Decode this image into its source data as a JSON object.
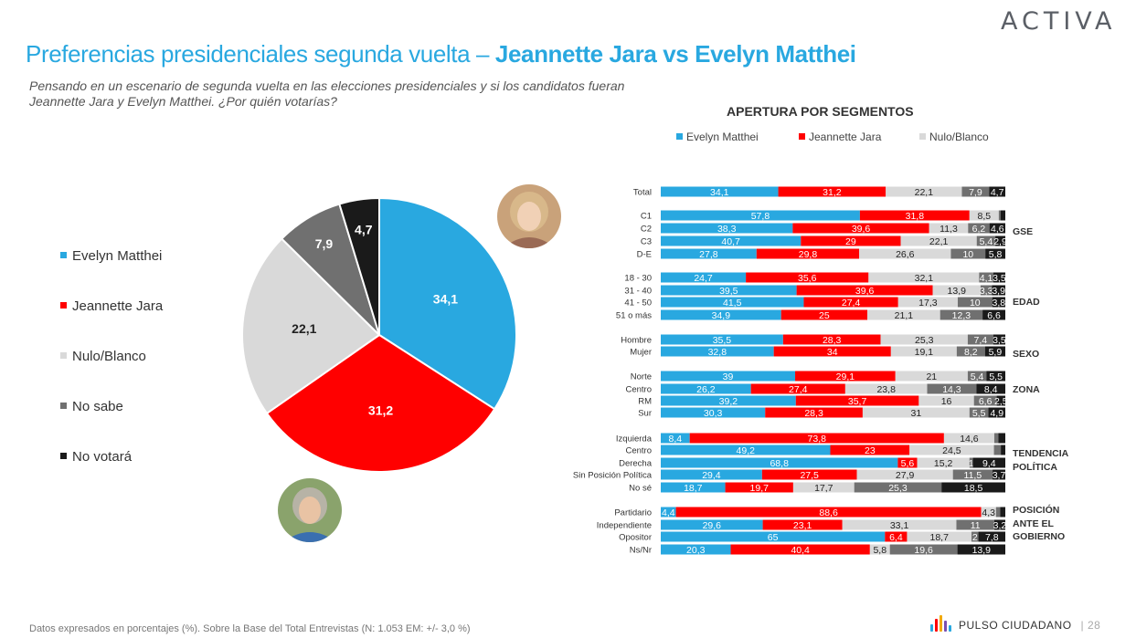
{
  "brand": {
    "logo_text": "ACTIVA",
    "footer_brand": "PULSO CIUDADANO",
    "page_number": "28"
  },
  "header": {
    "title_part1": "Preferencias presidenciales segunda vuelta – ",
    "title_part2": "Jeannette Jara vs Evelyn Matthei",
    "subtitle": "Pensando en un escenario de segunda vuelta en las elecciones presidenciales y si los candidatos fueran Jeannette Jara y Evelyn Matthei. ¿Por quién votarías?"
  },
  "footer_note": "Datos expresados en porcentajes (%). Sobre la Base del Total Entrevistas (N: 1.053  EM: +/- 3,0 %)",
  "colors": {
    "matthei": "#29a8e0",
    "jara": "#ff0000",
    "nulo": "#d9d9d9",
    "nosabe": "#707070",
    "novotara": "#1a1a1a"
  },
  "chart_data": [
    {
      "type": "pie",
      "categories": [
        "Evelyn Matthei",
        "Jeannette Jara",
        "Nulo/Blanco",
        "No sabe",
        "No votará"
      ],
      "values": [
        34.1,
        31.2,
        22.1,
        7.9,
        4.7
      ],
      "labels": [
        "34,1",
        "31,2",
        "22,1",
        "7,9",
        "4,7"
      ],
      "colors": [
        "#29a8e0",
        "#ff0000",
        "#d9d9d9",
        "#707070",
        "#1a1a1a"
      ],
      "legend_position": "left"
    },
    {
      "type": "bar",
      "orientation": "horizontal",
      "stacked": true,
      "title": "APERTURA POR SEGMENTOS",
      "legend": [
        "Evelyn Matthei",
        "Jeannette Jara",
        "Nulo/Blanco"
      ],
      "legend_position": "top",
      "series_colors": [
        "#29a8e0",
        "#ff0000",
        "#d9d9d9",
        "#707070",
        "#1a1a1a"
      ],
      "groups": [
        {
          "label": "",
          "rows": [
            {
              "label": "Total",
              "values": [
                34.1,
                31.2,
                22.1,
                7.9,
                4.7
              ],
              "labels": [
                "34,1",
                "31,2",
                "22,1",
                "7,9",
                "4,7"
              ]
            }
          ]
        },
        {
          "label": "GSE",
          "rows": [
            {
              "label": "C1",
              "values": [
                57.8,
                31.8,
                8.5,
                0.5,
                1.4
              ],
              "labels": [
                "57,8",
                "31,8",
                "8,5",
                "",
                ""
              ]
            },
            {
              "label": "C2",
              "values": [
                38.3,
                39.6,
                11.3,
                6.2,
                4.6
              ],
              "labels": [
                "38,3",
                "39,6",
                "11,3",
                "6,2",
                "4,6"
              ]
            },
            {
              "label": "C3",
              "values": [
                40.7,
                29,
                22.1,
                5.4,
                2.9
              ],
              "labels": [
                "40,7",
                "29",
                "22,1",
                "5,4",
                "2,9"
              ]
            },
            {
              "label": "D-E",
              "values": [
                27.8,
                29.8,
                26.6,
                10,
                5.8
              ],
              "labels": [
                "27,8",
                "29,8",
                "26,6",
                "10",
                "5,8"
              ]
            }
          ]
        },
        {
          "label": "EDAD",
          "rows": [
            {
              "label": "18 - 30",
              "values": [
                24.7,
                35.6,
                32.1,
                4.1,
                3.5
              ],
              "labels": [
                "24,7",
                "35,6",
                "32,1",
                "4,1",
                "3,5"
              ]
            },
            {
              "label": "31 - 40",
              "values": [
                39.5,
                39.6,
                13.9,
                3.3,
                3.9
              ],
              "labels": [
                "39,5",
                "39,6",
                "13,9",
                "3,3",
                "3,9"
              ]
            },
            {
              "label": "41 - 50",
              "values": [
                41.5,
                27.4,
                17.3,
                10,
                3.8
              ],
              "labels": [
                "41,5",
                "27,4",
                "17,3",
                "10",
                "3,8"
              ]
            },
            {
              "label": "51 o más",
              "values": [
                34.9,
                25,
                21.1,
                12.3,
                6.6
              ],
              "labels": [
                "34,9",
                "25",
                "21,1",
                "12,3",
                "6,6"
              ]
            }
          ]
        },
        {
          "label": "SEXO",
          "rows": [
            {
              "label": "Hombre",
              "values": [
                35.5,
                28.3,
                25.3,
                7.4,
                3.5
              ],
              "labels": [
                "35,5",
                "28,3",
                "25,3",
                "7,4",
                "3,5"
              ]
            },
            {
              "label": "Mujer",
              "values": [
                32.8,
                34,
                19.1,
                8.2,
                5.9
              ],
              "labels": [
                "32,8",
                "34",
                "19,1",
                "8,2",
                "5,9"
              ]
            }
          ]
        },
        {
          "label": "ZONA",
          "rows": [
            {
              "label": "Norte",
              "values": [
                39,
                29.1,
                21,
                5.4,
                5.5
              ],
              "labels": [
                "39",
                "29,1",
                "21",
                "5,4",
                "5,5"
              ]
            },
            {
              "label": "Centro",
              "values": [
                26.2,
                27.4,
                23.8,
                14.3,
                8.4
              ],
              "labels": [
                "26,2",
                "27,4",
                "23,8",
                "14,3",
                "8,4"
              ]
            },
            {
              "label": "RM",
              "values": [
                39.2,
                35.7,
                16,
                6.6,
                2.5
              ],
              "labels": [
                "39,2",
                "35,7",
                "16",
                "6,6",
                "2,5"
              ]
            },
            {
              "label": "Sur",
              "values": [
                30.3,
                28.3,
                31,
                5.5,
                4.9
              ],
              "labels": [
                "30,3",
                "28,3",
                "31",
                "5,5",
                "4,9"
              ]
            }
          ]
        },
        {
          "label": "TENDENCIA POLÍTICA",
          "rows": [
            {
              "label": "Izquierda",
              "values": [
                8.4,
                73.8,
                14.6,
                1.2,
                2
              ],
              "labels": [
                "8,4",
                "73,8",
                "14,6",
                "",
                ""
              ]
            },
            {
              "label": "Centro",
              "values": [
                49.2,
                23,
                24.5,
                2,
                1.3
              ],
              "labels": [
                "49,2",
                "23",
                "24,5",
                "",
                ""
              ]
            },
            {
              "label": "Derecha",
              "values": [
                68.8,
                5.6,
                15.2,
                1,
                9.4
              ],
              "labels": [
                "68,8",
                "5,6",
                "15,2",
                "1",
                "9,4"
              ]
            },
            {
              "label": "Sin Posición Política",
              "values": [
                29.4,
                27.5,
                27.9,
                11.5,
                3.7
              ],
              "labels": [
                "29,4",
                "27,5",
                "27,9",
                "11,5",
                "3,7"
              ]
            },
            {
              "label": "No sé",
              "values": [
                18.7,
                19.7,
                17.7,
                25.3,
                18.5
              ],
              "labels": [
                "18,7",
                "19,7",
                "17,7",
                "25,3",
                "18,5"
              ]
            }
          ]
        },
        {
          "label": "POSICIÓN ANTE EL GOBIERNO",
          "rows": [
            {
              "label": "Partidario",
              "values": [
                4.4,
                88.6,
                4.3,
                1.2,
                1.5
              ],
              "labels": [
                "4,4",
                "88,6",
                "4,3",
                "",
                ""
              ]
            },
            {
              "label": "Independiente",
              "values": [
                29.6,
                23.1,
                33.1,
                11,
                3.2
              ],
              "labels": [
                "29,6",
                "23,1",
                "33,1",
                "11",
                "3,2"
              ]
            },
            {
              "label": "Opositor",
              "values": [
                65,
                6.4,
                18.7,
                2,
                7.8
              ],
              "labels": [
                "65",
                "6,4",
                "18,7",
                "2",
                "7,8"
              ]
            },
            {
              "label": "Ns/Nr",
              "values": [
                20.3,
                40.4,
                5.8,
                19.6,
                13.9
              ],
              "labels": [
                "20,3",
                "40,4",
                "5,8",
                "19,6",
                "13,9"
              ]
            }
          ]
        }
      ]
    }
  ]
}
